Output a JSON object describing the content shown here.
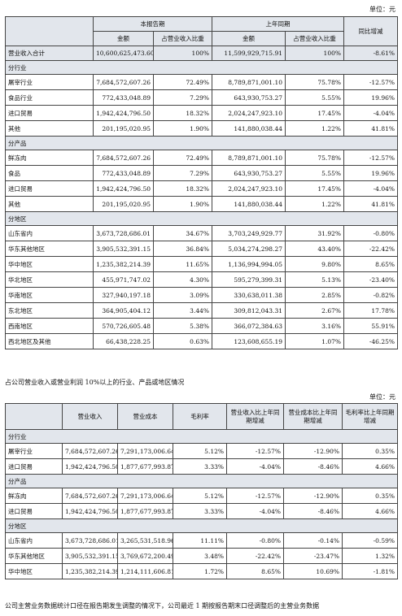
{
  "unit_label": "单位：元",
  "table1": {
    "header": {
      "current_period": "本报告期",
      "prior_period": "上年同期",
      "yoy_change": "同比增减",
      "amount": "金额",
      "share_of_revenue": "占营业收入比重"
    },
    "total": {
      "label": "营业收入合计",
      "cur_amount": "10,600,625,473.60",
      "cur_ratio": "100%",
      "prev_amount": "11,599,929,715.91",
      "prev_ratio": "100%",
      "change": "-8.61%"
    },
    "sections": [
      {
        "title": "分行业",
        "rows": [
          {
            "label": "屠宰行业",
            "cur_amount": "7,684,572,607.26",
            "cur_ratio": "72.49%",
            "prev_amount": "8,789,871,001.10",
            "prev_ratio": "75.78%",
            "change": "-12.57%"
          },
          {
            "label": "食品行业",
            "cur_amount": "772,433,048.89",
            "cur_ratio": "7.29%",
            "prev_amount": "643,930,753.27",
            "prev_ratio": "5.55%",
            "change": "19.96%"
          },
          {
            "label": "进口贸易",
            "cur_amount": "1,942,424,796.50",
            "cur_ratio": "18.32%",
            "prev_amount": "2,024,247,923.10",
            "prev_ratio": "17.45%",
            "change": "-4.04%"
          },
          {
            "label": "其他",
            "cur_amount": "201,195,020.95",
            "cur_ratio": "1.90%",
            "prev_amount": "141,880,038.44",
            "prev_ratio": "1.22%",
            "change": "41.81%"
          }
        ]
      },
      {
        "title": "分产品",
        "rows": [
          {
            "label": "鲜冻肉",
            "cur_amount": "7,684,572,607.26",
            "cur_ratio": "72.49%",
            "prev_amount": "8,789,871,001.10",
            "prev_ratio": "75.78%",
            "change": "-12.57%"
          },
          {
            "label": "食品",
            "cur_amount": "772,433,048.89",
            "cur_ratio": "7.29%",
            "prev_amount": "643,930,753.27",
            "prev_ratio": "5.55%",
            "change": "19.96%"
          },
          {
            "label": "进口贸易",
            "cur_amount": "1,942,424,796.50",
            "cur_ratio": "18.32%",
            "prev_amount": "2,024,247,923.10",
            "prev_ratio": "17.45%",
            "change": "-4.04%"
          },
          {
            "label": "其他",
            "cur_amount": "201,195,020.95",
            "cur_ratio": "1.90%",
            "prev_amount": "141,880,038.44",
            "prev_ratio": "1.22%",
            "change": "41.81%"
          }
        ]
      },
      {
        "title": "分地区",
        "rows": [
          {
            "label": "山东省内",
            "cur_amount": "3,673,728,686.01",
            "cur_ratio": "34.67%",
            "prev_amount": "3,703,249,929.77",
            "prev_ratio": "31.92%",
            "change": "-0.80%"
          },
          {
            "label": "华东其他地区",
            "cur_amount": "3,905,532,391.15",
            "cur_ratio": "36.84%",
            "prev_amount": "5,034,274,298.27",
            "prev_ratio": "43.40%",
            "change": "-22.42%"
          },
          {
            "label": "华中地区",
            "cur_amount": "1,235,382,214.39",
            "cur_ratio": "11.65%",
            "prev_amount": "1,136,994,994.05",
            "prev_ratio": "9.80%",
            "change": "8.65%"
          },
          {
            "label": "华北地区",
            "cur_amount": "455,971,747.02",
            "cur_ratio": "4.30%",
            "prev_amount": "595,279,399.31",
            "prev_ratio": "5.13%",
            "change": "-23.40%"
          },
          {
            "label": "华南地区",
            "cur_amount": "327,940,197.18",
            "cur_ratio": "3.09%",
            "prev_amount": "330,638,011.38",
            "prev_ratio": "2.85%",
            "change": "-0.82%"
          },
          {
            "label": "东北地区",
            "cur_amount": "364,905,404.12",
            "cur_ratio": "3.44%",
            "prev_amount": "309,812,043.31",
            "prev_ratio": "2.67%",
            "change": "17.78%"
          },
          {
            "label": "西南地区",
            "cur_amount": "570,726,605.48",
            "cur_ratio": "5.38%",
            "prev_amount": "366,072,384.63",
            "prev_ratio": "3.16%",
            "change": "55.91%"
          },
          {
            "label": "西北地区及其他",
            "cur_amount": "66,438,228.25",
            "cur_ratio": "0.63%",
            "prev_amount": "123,608,655.19",
            "prev_ratio": "1.07%",
            "change": "-46.25%"
          }
        ]
      }
    ]
  },
  "note1": "占公司营业收入或营业利润 10%以上的行业、产品或地区情况",
  "table2": {
    "header": {
      "revenue": "营业收入",
      "cost": "营业成本",
      "margin": "毛利率",
      "rev_change": "营业收入比上年同期增减",
      "cost_change": "营业成本比上年同期增减",
      "margin_change": "毛利率比上年同期增减"
    },
    "sections": [
      {
        "title": "分行业",
        "rows": [
          {
            "label": "屠宰行业",
            "revenue": "7,684,572,607.26",
            "cost": "7,291,173,006.64",
            "margin": "5.12%",
            "rev_change": "-12.57%",
            "cost_change": "-12.90%",
            "margin_change": "0.35%"
          },
          {
            "label": "进口贸易",
            "revenue": "1,942,424,796.50",
            "cost": "1,877,677,993.87",
            "margin": "3.33%",
            "rev_change": "-4.04%",
            "cost_change": "-8.46%",
            "margin_change": "4.66%"
          }
        ]
      },
      {
        "title": "分产品",
        "rows": [
          {
            "label": "鲜冻肉",
            "revenue": "7,684,572,607.26",
            "cost": "7,291,173,006.64",
            "margin": "5.12%",
            "rev_change": "-12.57%",
            "cost_change": "-12.90%",
            "margin_change": "0.35%"
          },
          {
            "label": "进口贸易",
            "revenue": "1,942,424,796.50",
            "cost": "1,877,677,993.87",
            "margin": "3.33%",
            "rev_change": "-4.04%",
            "cost_change": "-8.46%",
            "margin_change": "4.66%"
          }
        ]
      },
      {
        "title": "分地区",
        "rows": [
          {
            "label": "山东省内",
            "revenue": "3,673,728,686.01",
            "cost": "3,265,531,518.96",
            "margin": "11.11%",
            "rev_change": "-0.80%",
            "cost_change": "-0.14%",
            "margin_change": "-0.59%"
          },
          {
            "label": "华东其他地区",
            "revenue": "3,905,532,391.15",
            "cost": "3,769,672,200.49",
            "margin": "3.48%",
            "rev_change": "-22.42%",
            "cost_change": "-23.47%",
            "margin_change": "1.32%"
          },
          {
            "label": "华中地区",
            "revenue": "1,235,382,214.39",
            "cost": "1,214,111,606.81",
            "margin": "1.72%",
            "rev_change": "8.65%",
            "cost_change": "10.69%",
            "margin_change": "-1.81%"
          }
        ]
      }
    ]
  },
  "note2": "公司主营业务数据统计口径在报告期发生调整的情况下，公司最近 1 期按报告期末口径调整后的主营业务数据"
}
